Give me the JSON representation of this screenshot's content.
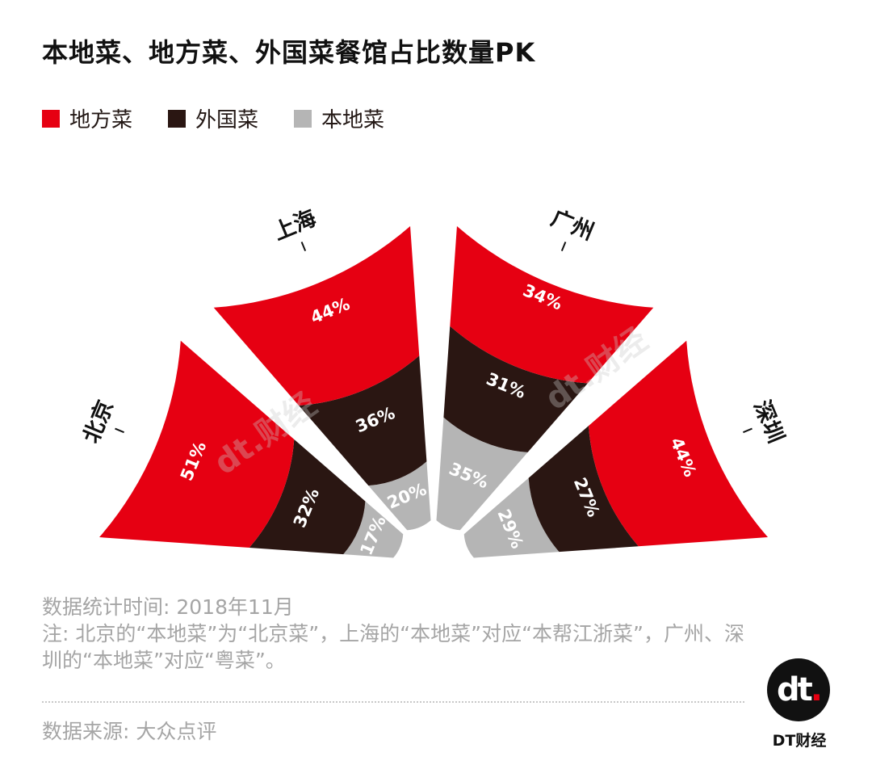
{
  "title": "本地菜、地方菜、外国菜餐馆占比数量PK",
  "legend": [
    {
      "label": "地方菜",
      "color": "#e60012"
    },
    {
      "label": "外国菜",
      "color": "#2a1612"
    },
    {
      "label": "本地菜",
      "color": "#b5b5b5"
    }
  ],
  "chart_data": {
    "type": "radial-stacked-bar",
    "title": "本地菜、地方菜、外国菜餐馆占比数量PK",
    "ring_order": [
      "本地菜",
      "外国菜",
      "地方菜"
    ],
    "categories": [
      "北京",
      "上海",
      "广州",
      "深圳"
    ],
    "series": [
      {
        "name": "地方菜",
        "color": "#e60012",
        "values": [
          51,
          44,
          34,
          44
        ],
        "labels": [
          "51%",
          "44%",
          "34%",
          "44%"
        ]
      },
      {
        "name": "外国菜",
        "color": "#2a1612",
        "values": [
          32,
          36,
          31,
          27
        ],
        "labels": [
          "32%",
          "36%",
          "31%",
          "27%"
        ]
      },
      {
        "name": "本地菜",
        "color": "#b5b5b5",
        "values": [
          17,
          20,
          35,
          29
        ],
        "labels": [
          "17%",
          "20%",
          "35%",
          "29%"
        ]
      }
    ]
  },
  "notes": {
    "time": "数据统计时间: 2018年11月",
    "note": "注: 北京的“本地菜”为“北京菜”，上海的“本地菜”对应“本帮江浙菜”，广州、深圳的“本地菜”对应“粤菜”。"
  },
  "source": "数据来源: 大众点评",
  "brand": {
    "logo_text": "DT财经",
    "logo_mark": "dt",
    "watermark": "dt.财经"
  }
}
